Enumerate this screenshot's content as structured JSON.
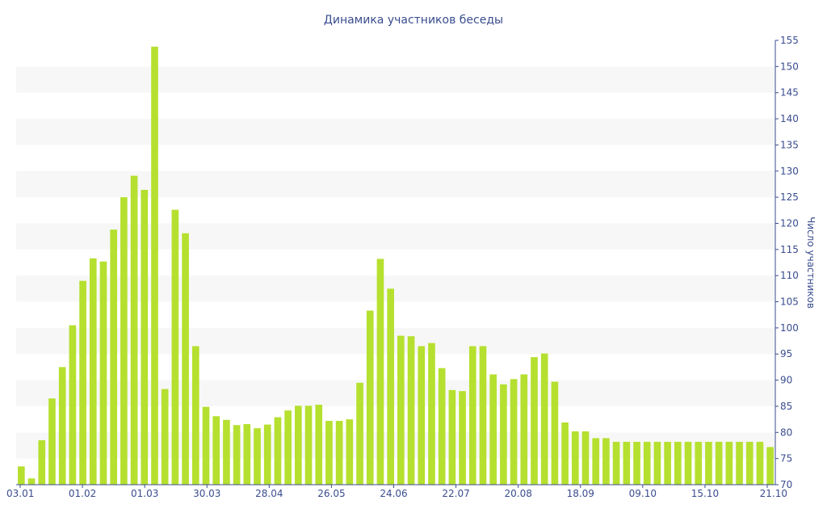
{
  "chart_data": {
    "type": "bar",
    "title": "Динамика участников беседы",
    "ylabel": "Число участников",
    "xlabel": "",
    "ylim": [
      70,
      155
    ],
    "y_ticks": [
      70,
      75,
      80,
      85,
      90,
      95,
      100,
      105,
      110,
      115,
      120,
      125,
      130,
      135,
      140,
      145,
      150,
      155
    ],
    "y_axis_position": "right",
    "x_tick_labels": [
      "03.01",
      "01.02",
      "01.03",
      "30.03",
      "28.04",
      "26.05",
      "24.06",
      "22.07",
      "20.08",
      "18.09",
      "09.10",
      "15.10",
      "21.10"
    ],
    "bar_color": "#b5e02f",
    "band_color": "#f7f7f7",
    "axis_color": "#3a4d8f",
    "values": [
      73.5,
      71.2,
      78.5,
      86.5,
      92.5,
      100.5,
      109,
      113.3,
      112.7,
      118.8,
      125,
      129.1,
      126.4,
      153.8,
      88.3,
      122.6,
      118.1,
      96.5,
      84.9,
      83.1,
      82.4,
      81.4,
      81.6,
      80.8,
      81.5,
      82.9,
      84.2,
      85.1,
      85.1,
      85.3,
      82.2,
      82.2,
      82.5,
      89.5,
      103.3,
      113.2,
      107.5,
      98.5,
      98.4,
      96.5,
      97.1,
      92.3,
      88.1,
      87.9,
      96.5,
      96.5,
      91.1,
      89.2,
      90.2,
      91.1,
      94.4,
      95.1,
      89.7,
      81.9,
      80.2,
      80.2,
      78.9,
      78.9,
      78.2,
      78.2,
      78.2,
      78.2,
      78.2,
      78.2,
      78.2,
      78.2,
      78.2,
      78.2,
      78.2,
      78.2,
      78.2,
      78.2,
      78.2,
      77.2
    ]
  }
}
